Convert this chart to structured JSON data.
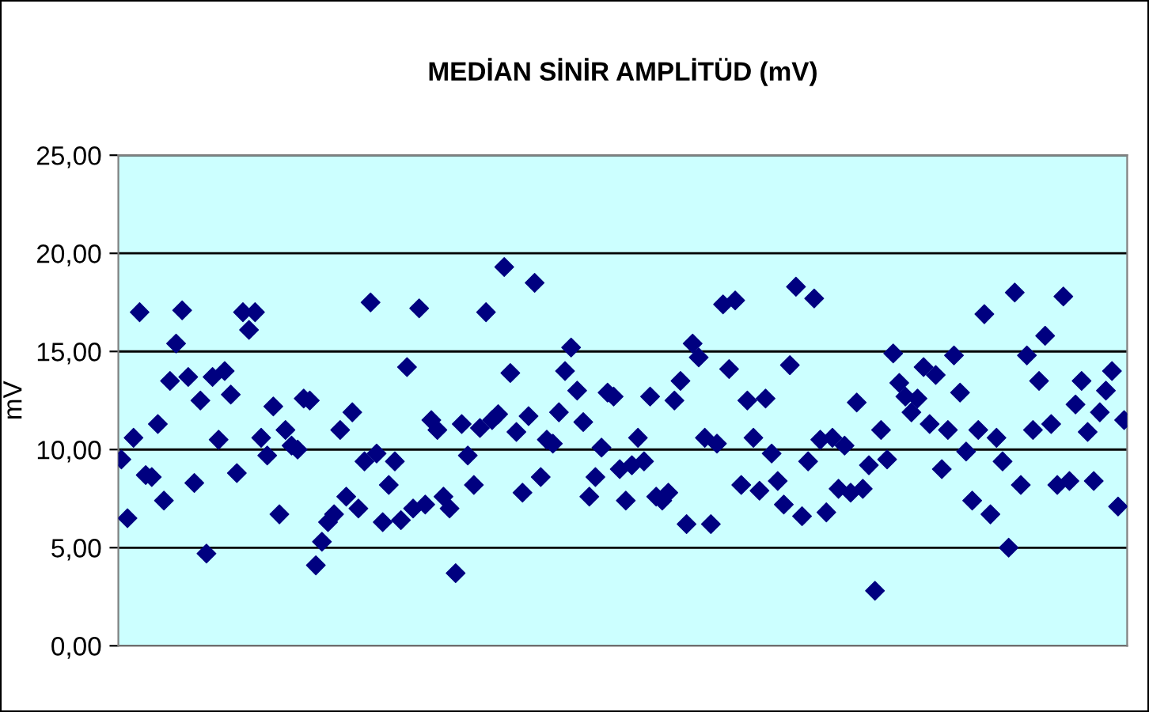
{
  "chart_data": {
    "type": "scatter",
    "title": "MEDİAN SİNİR AMPLİTÜD (mV)",
    "ylabel": "mV",
    "marker": "diamond",
    "grid": "y",
    "legend": false,
    "tick_labels": "y",
    "ylim": [
      0,
      25
    ],
    "yticks": [
      {
        "value": 0,
        "label": "0,00"
      },
      {
        "value": 5,
        "label": "5,00"
      },
      {
        "value": 10,
        "label": "10,00"
      },
      {
        "value": 15,
        "label": "15,00"
      },
      {
        "value": 20,
        "label": "20,00"
      },
      {
        "value": 25,
        "label": "25,00"
      }
    ],
    "categories": [
      null,
      null,
      null,
      null,
      null,
      null,
      null,
      null,
      null,
      null,
      null,
      null,
      null,
      null,
      null,
      null,
      null,
      null,
      null,
      null,
      null,
      null,
      null,
      null,
      null,
      null,
      null,
      null,
      null,
      null,
      null,
      null,
      null,
      null,
      null,
      null,
      null,
      null,
      null,
      null,
      null,
      null,
      null,
      null,
      null,
      null,
      null,
      null,
      null,
      null,
      null,
      null,
      null,
      null,
      null,
      null,
      null,
      null,
      null,
      null,
      null,
      null,
      null,
      null,
      null,
      null,
      null,
      null,
      null,
      null,
      null,
      null,
      null,
      null,
      null,
      null,
      null,
      null,
      null,
      null,
      null,
      null,
      null,
      null,
      null,
      null,
      null,
      null,
      null,
      null,
      null,
      null,
      null,
      null,
      null,
      null,
      null,
      null,
      null,
      null,
      null,
      null,
      null,
      null,
      null,
      null,
      null,
      null,
      null,
      null,
      null,
      null,
      null,
      null,
      null,
      null,
      null,
      null,
      null,
      null,
      null,
      null,
      null,
      null,
      null,
      null,
      null,
      null,
      null,
      null,
      null,
      null,
      null,
      null,
      null,
      null,
      null,
      null,
      null,
      null,
      null,
      null,
      null,
      null,
      null,
      null,
      null,
      null,
      null,
      null,
      null,
      null,
      null,
      null,
      null,
      null,
      null,
      null,
      null,
      null,
      null,
      null,
      null,
      null,
      null,
      null
    ],
    "series": [
      {
        "color": "#000080",
        "values": [
          9.5,
          6.5,
          10.6,
          17.0,
          8.7,
          8.6,
          11.3,
          7.4,
          13.5,
          15.4,
          17.1,
          13.7,
          8.3,
          12.5,
          4.7,
          13.7,
          10.5,
          14.0,
          12.8,
          8.8,
          17.0,
          16.1,
          17.0,
          10.6,
          9.7,
          12.2,
          6.7,
          11.0,
          10.2,
          10.0,
          12.6,
          12.5,
          4.1,
          5.3,
          6.3,
          6.7,
          11.0,
          7.6,
          11.9,
          7.0,
          9.4,
          17.5,
          9.8,
          6.3,
          8.2,
          9.4,
          6.4,
          14.2,
          7.0,
          17.2,
          7.2,
          11.5,
          11.0,
          7.6,
          7.0,
          3.7,
          11.3,
          9.7,
          8.2,
          11.1,
          17.0,
          11.5,
          11.8,
          19.3,
          13.9,
          10.9,
          7.8,
          11.7,
          18.5,
          8.6,
          10.5,
          10.3,
          11.9,
          14.0,
          15.2,
          13.0,
          11.4,
          7.6,
          8.6,
          10.1,
          12.9,
          12.7,
          9.0,
          7.4,
          9.2,
          10.6,
          9.4,
          12.7,
          7.6,
          7.4,
          7.8,
          12.5,
          13.5,
          6.2,
          15.4,
          14.7,
          10.6,
          6.2,
          10.3,
          17.4,
          14.1,
          17.6,
          8.2,
          12.5,
          10.6,
          7.9,
          12.6,
          9.8,
          8.4,
          7.2,
          14.3,
          18.3,
          6.6,
          9.4,
          17.7,
          10.5,
          6.8,
          10.6,
          8.0,
          10.2,
          7.8,
          12.4,
          8.0,
          9.2,
          2.8,
          11.0,
          9.5,
          14.9,
          13.4,
          12.7,
          11.9,
          12.6,
          14.2,
          11.3,
          13.8,
          9.0,
          11.0,
          14.8,
          12.9,
          9.9,
          7.4,
          11.0,
          16.9,
          6.7,
          10.6,
          9.4,
          5.0,
          18.0,
          8.2,
          14.8,
          11.0,
          13.5,
          15.8,
          11.3,
          8.2,
          17.8,
          8.4,
          12.3,
          13.5,
          10.9,
          8.4,
          11.9,
          13.0,
          14.0,
          7.1,
          11.5
        ]
      }
    ]
  }
}
